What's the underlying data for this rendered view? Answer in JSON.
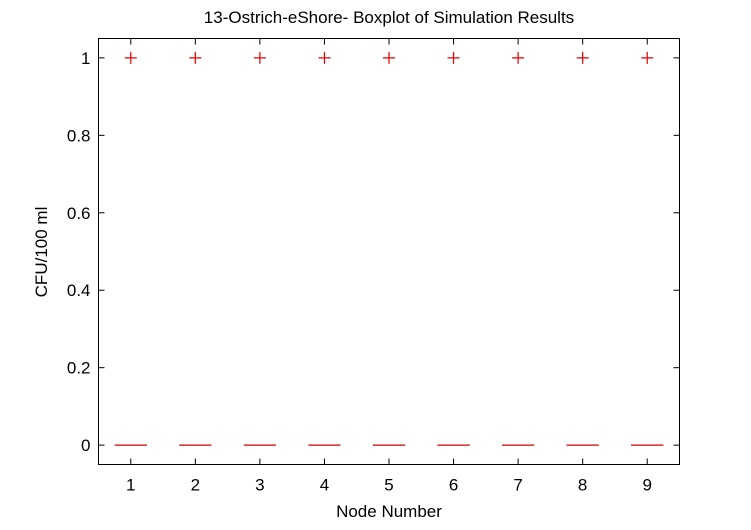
{
  "chart_data": {
    "type": "boxplot",
    "title": "13-Ostrich-eShore- Boxplot of Simulation Results",
    "xlabel": "Node Number",
    "ylabel": "CFU/100 ml",
    "categories": [
      "1",
      "2",
      "3",
      "4",
      "5",
      "6",
      "7",
      "8",
      "9"
    ],
    "medians": [
      0,
      0,
      0,
      0,
      0,
      0,
      0,
      0,
      0
    ],
    "outliers": [
      [
        1
      ],
      [
        1
      ],
      [
        1
      ],
      [
        1
      ],
      [
        1
      ],
      [
        1
      ],
      [
        1
      ],
      [
        1
      ],
      [
        1
      ]
    ],
    "xlim": [
      0.5,
      9.5
    ],
    "ylim": [
      -0.05,
      1.05
    ],
    "yticks": [
      0,
      0.2,
      0.4,
      0.6,
      0.8,
      1
    ],
    "ytick_labels": [
      "0",
      "0.2",
      "0.4",
      "0.6",
      "0.8",
      "1"
    ],
    "grid": false,
    "colors": {
      "median": "#d00000",
      "outlier": "#e00000",
      "axes": "#000000"
    }
  }
}
